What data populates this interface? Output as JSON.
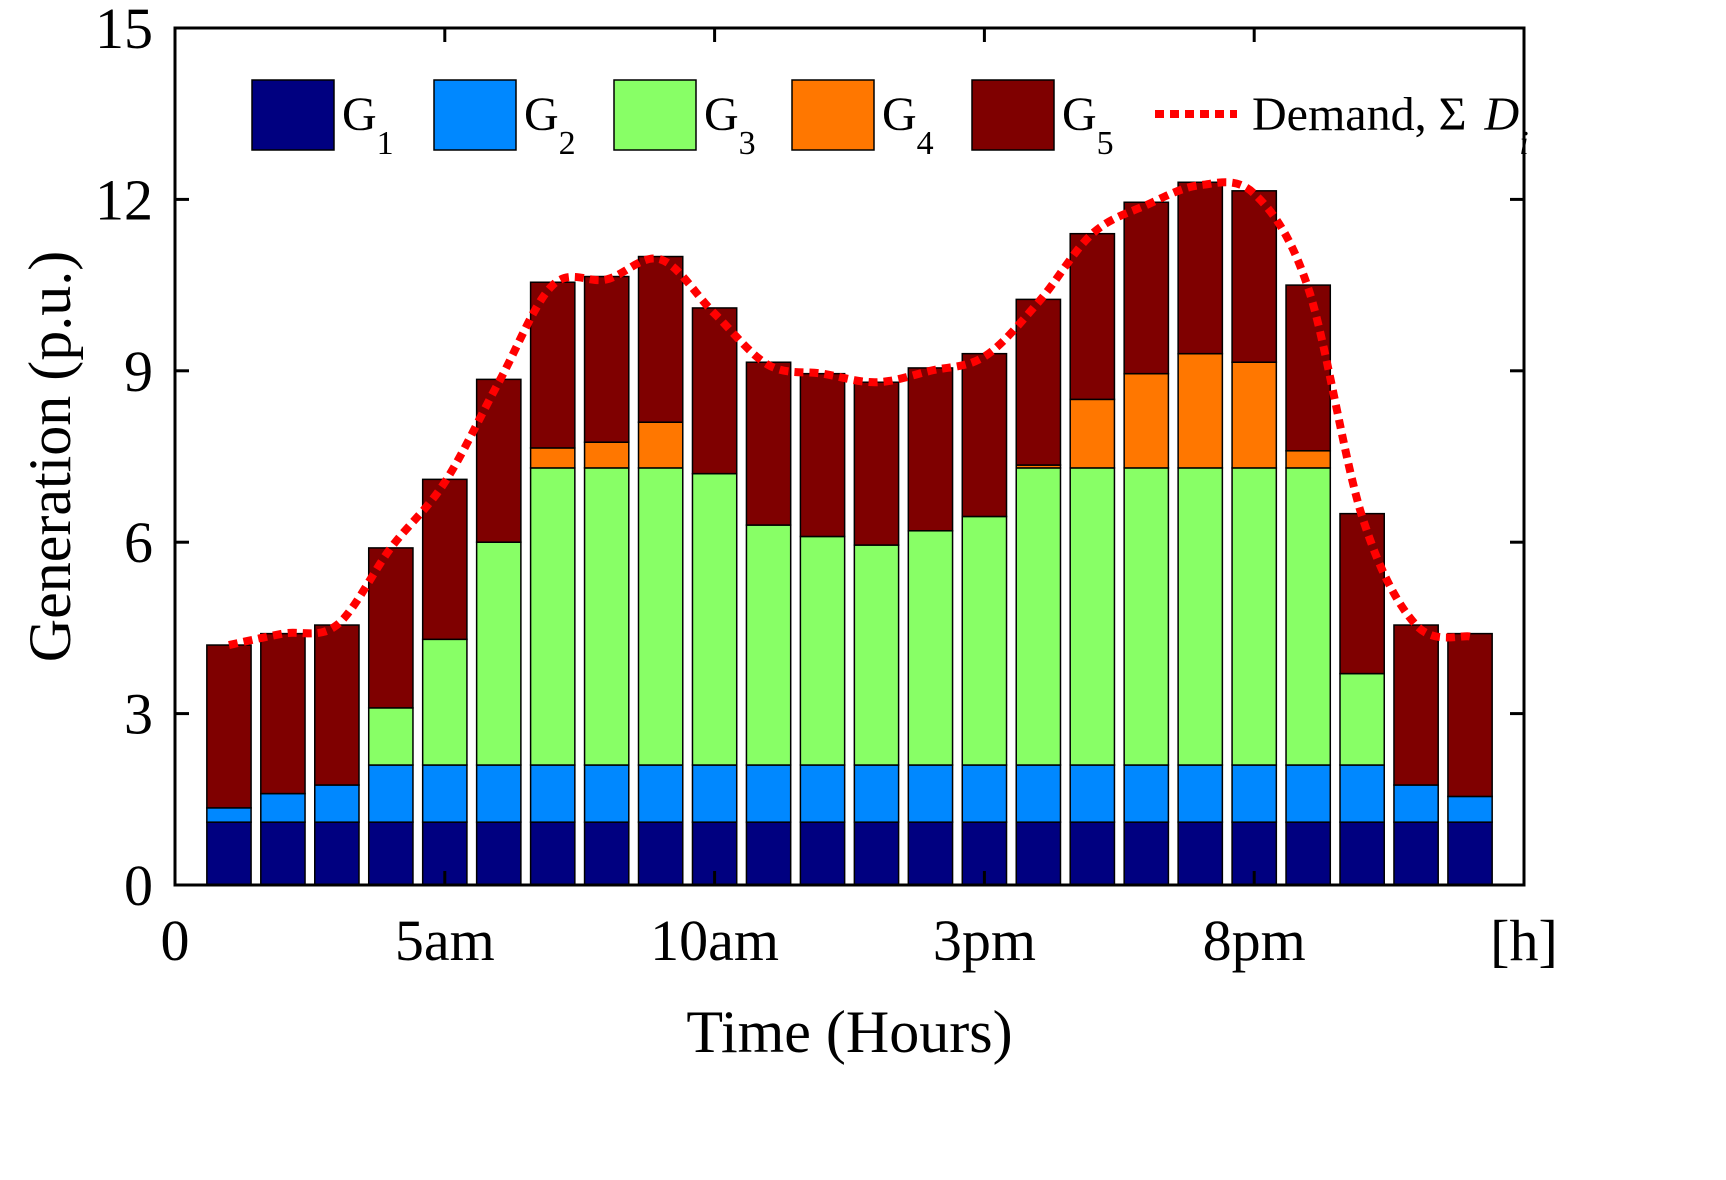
{
  "chart_data": {
    "type": "bar",
    "stacked": true,
    "title": "",
    "xlabel": "Time (Hours)",
    "ylabel": "Generation (p.u.)",
    "ylim": [
      0,
      15
    ],
    "yticks": [
      "0",
      "3",
      "6",
      "9",
      "12",
      "15"
    ],
    "xlim": [
      0,
      25
    ],
    "xticks": [
      {
        "x": 0,
        "label": "0"
      },
      {
        "x": 5,
        "label": "5am"
      },
      {
        "x": 10,
        "label": "10am"
      },
      {
        "x": 15,
        "label": "3pm"
      },
      {
        "x": 20,
        "label": "8pm"
      },
      {
        "x": 25,
        "label": "[h]"
      }
    ],
    "hours": [
      1,
      2,
      3,
      4,
      5,
      6,
      7,
      8,
      9,
      10,
      11,
      12,
      13,
      14,
      15,
      16,
      17,
      18,
      19,
      20,
      21,
      22,
      23,
      24
    ],
    "series": [
      {
        "name": "G",
        "sub": "1",
        "color": "#000080",
        "values": [
          1.1,
          1.1,
          1.1,
          1.1,
          1.1,
          1.1,
          1.1,
          1.1,
          1.1,
          1.1,
          1.1,
          1.1,
          1.1,
          1.1,
          1.1,
          1.1,
          1.1,
          1.1,
          1.1,
          1.1,
          1.1,
          1.1,
          1.1,
          1.1
        ]
      },
      {
        "name": "G",
        "sub": "2",
        "color": "#0088ff",
        "values": [
          0.25,
          0.5,
          0.65,
          1.0,
          1.0,
          1.0,
          1.0,
          1.0,
          1.0,
          1.0,
          1.0,
          1.0,
          1.0,
          1.0,
          1.0,
          1.0,
          1.0,
          1.0,
          1.0,
          1.0,
          1.0,
          1.0,
          0.65,
          0.45
        ]
      },
      {
        "name": "G",
        "sub": "3",
        "color": "#88ff66",
        "values": [
          0,
          0,
          0,
          1.0,
          2.2,
          3.9,
          5.2,
          5.2,
          5.2,
          5.1,
          4.2,
          4.0,
          3.85,
          4.1,
          4.35,
          5.2,
          5.2,
          5.2,
          5.2,
          5.2,
          5.2,
          1.6,
          0,
          0
        ]
      },
      {
        "name": "G",
        "sub": "4",
        "color": "#ff7700",
        "values": [
          0,
          0,
          0,
          0,
          0,
          0,
          0.35,
          0.45,
          0.8,
          0,
          0,
          0,
          0,
          0,
          0,
          0.05,
          1.2,
          1.65,
          2.0,
          1.85,
          0.3,
          0,
          0,
          0
        ]
      },
      {
        "name": "G",
        "sub": "5",
        "color": "#7f0000",
        "values": [
          2.85,
          2.8,
          2.8,
          2.8,
          2.8,
          2.85,
          2.9,
          2.9,
          2.9,
          2.9,
          2.85,
          2.85,
          2.85,
          2.85,
          2.85,
          2.9,
          2.9,
          3.0,
          3.0,
          3.0,
          2.9,
          2.8,
          2.8,
          2.85
        ]
      }
    ],
    "line": {
      "name": "Demand, Σ",
      "symbol": "D",
      "sub": "i",
      "color": "#ff0000",
      "values": [
        4.2,
        4.4,
        4.55,
        5.9,
        7.05,
        8.8,
        10.5,
        10.6,
        10.95,
        10.0,
        9.1,
        8.95,
        8.8,
        9.0,
        9.25,
        10.2,
        11.4,
        11.9,
        12.25,
        12.1,
        10.45,
        6.45,
        4.55,
        4.35
      ]
    },
    "legend": "top-inside",
    "grid": false
  }
}
